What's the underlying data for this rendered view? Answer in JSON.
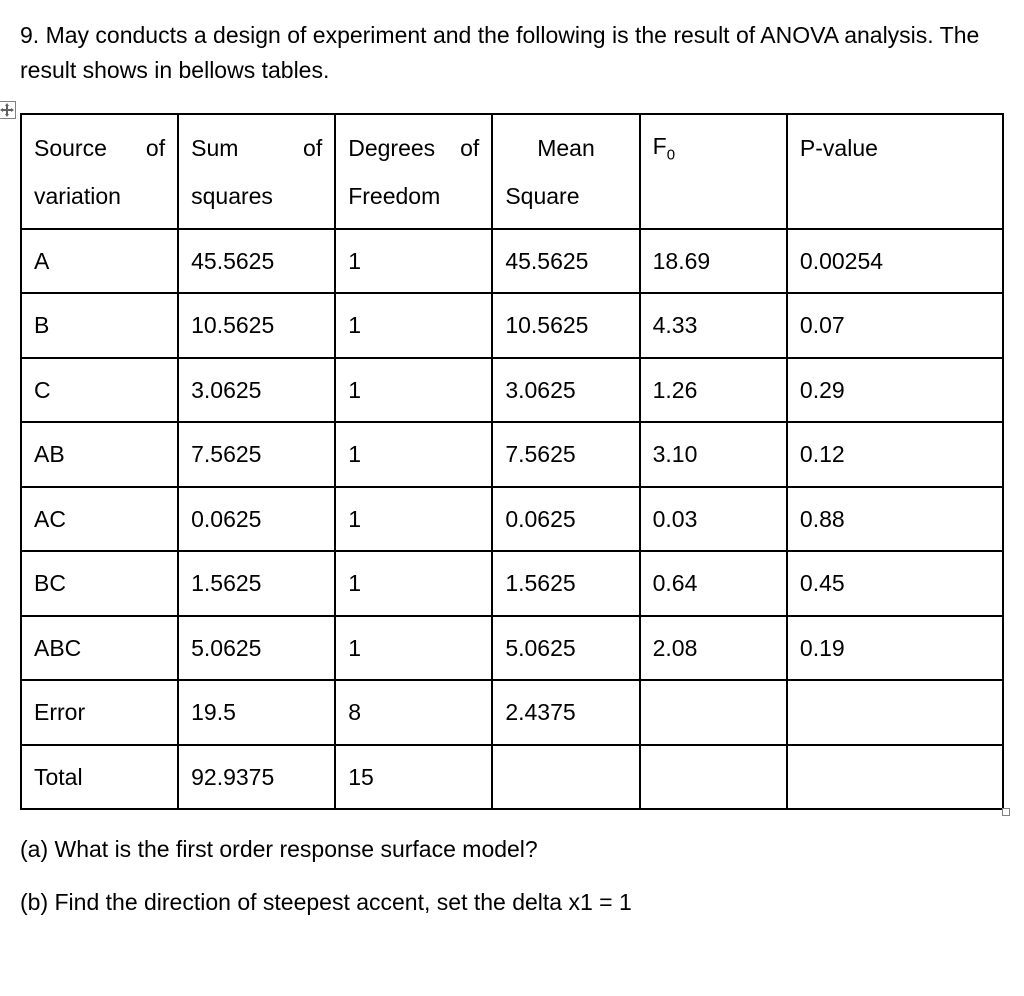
{
  "intro": "9. May conducts a design of experiment and the following is the result of ANOVA analysis. The result shows in bellows tables.",
  "table": {
    "headers": {
      "col0_top_left": "Source",
      "col0_top_right": "of",
      "col0_bot": "variation",
      "col1_top_left": "Sum",
      "col1_top_right": "of",
      "col1_bot": "squares",
      "col2_top_left": "Degrees",
      "col2_top_right": "of",
      "col2_bot": "Freedom",
      "col3_top": "Mean",
      "col3_bot": "Square",
      "col4_prefix": "F",
      "col4_sub": "0",
      "col5": "P-value"
    },
    "rows": [
      {
        "source": "A",
        "ss": "45.5625",
        "df": "1",
        "ms": "45.5625",
        "f0": "18.69",
        "p": "0.00254"
      },
      {
        "source": "B",
        "ss": "10.5625",
        "df": "1",
        "ms": "10.5625",
        "f0": "4.33",
        "p": "0.07"
      },
      {
        "source": "C",
        "ss": "3.0625",
        "df": "1",
        "ms": "3.0625",
        "f0": "1.26",
        "p": "0.29"
      },
      {
        "source": "AB",
        "ss": "7.5625",
        "df": "1",
        "ms": "7.5625",
        "f0": "3.10",
        "p": "0.12"
      },
      {
        "source": "AC",
        "ss": "0.0625",
        "df": "1",
        "ms": "0.0625",
        "f0": "0.03",
        "p": "0.88"
      },
      {
        "source": "BC",
        "ss": "1.5625",
        "df": "1",
        "ms": "1.5625",
        "f0": "0.64",
        "p": "0.45"
      },
      {
        "source": "ABC",
        "ss": "5.0625",
        "df": "1",
        "ms": "5.0625",
        "f0": "2.08",
        "p": "0.19"
      },
      {
        "source": "Error",
        "ss": "19.5",
        "df": "8",
        "ms": "2.4375",
        "f0": "",
        "p": ""
      },
      {
        "source": "Total",
        "ss": "92.9375",
        "df": "15",
        "ms": "",
        "f0": "",
        "p": ""
      }
    ]
  },
  "questions": {
    "a": "(a)  What is the first order response surface model?",
    "b": "(b)  Find the direction of steepest accent, set the delta x1 = 1"
  }
}
